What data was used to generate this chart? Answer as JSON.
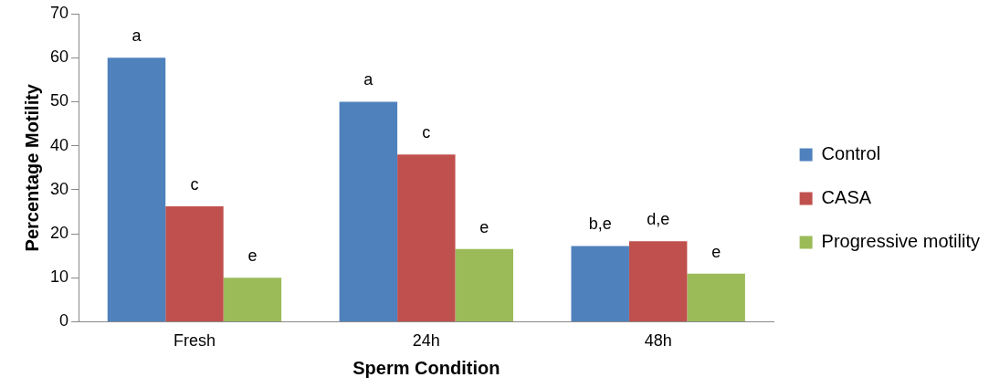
{
  "chart_data": {
    "type": "bar",
    "xlabel": "Sperm Condition",
    "ylabel": "Percentage Motility",
    "categories": [
      "Fresh",
      "24h",
      "48h"
    ],
    "series": [
      {
        "name": "Control",
        "color": "#4f81bd",
        "values": [
          60,
          50,
          17.2
        ],
        "value_labels": [
          "a",
          "a",
          "b,e"
        ]
      },
      {
        "name": "CASA",
        "color": "#c0504d",
        "values": [
          26.2,
          38,
          18.3
        ],
        "value_labels": [
          "c",
          "c",
          "d,e"
        ]
      },
      {
        "name": "Progressive motility",
        "color": "#9bbb59",
        "values": [
          10,
          16.5,
          10.9
        ],
        "value_labels": [
          "e",
          "e",
          "e"
        ]
      }
    ],
    "ylim": [
      0,
      70
    ],
    "yticks": [
      0,
      10,
      20,
      30,
      40,
      50,
      60,
      70
    ],
    "grid": false,
    "legend": "right"
  }
}
